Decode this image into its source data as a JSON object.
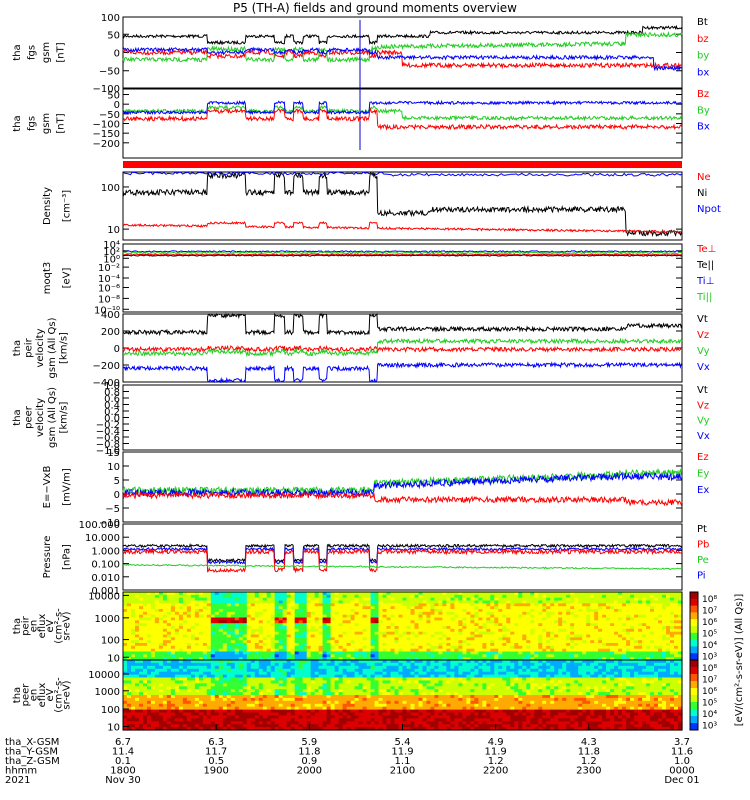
{
  "title": "P5 (TH-A) fields and ground moments overview",
  "panels": [
    {
      "id": "fgs1",
      "ylabel": [
        "tha",
        "fgs",
        "gsm",
        "[nT]"
      ],
      "ticks": [
        "100",
        "50",
        "0",
        "−50",
        "−100"
      ],
      "tick_y": [
        0.0,
        0.243,
        0.5,
        0.757,
        1.0
      ],
      "legend": [
        {
          "text": "Bt",
          "color": "#000000"
        },
        {
          "text": "bz",
          "color": "#ff0000"
        },
        {
          "text": "by",
          "color": "#22cc22"
        },
        {
          "text": "bx",
          "color": "#0000ff"
        }
      ]
    },
    {
      "id": "fgs2",
      "ylabel": [
        "tha",
        "fgs",
        "gsm",
        "[nT]"
      ],
      "ticks": [
        "50",
        "0",
        "−50",
        "−100",
        "−150",
        "−200"
      ],
      "tick_y": [
        0.08,
        0.22,
        0.36,
        0.5,
        0.64,
        0.78
      ],
      "legend": [
        {
          "text": "Bz",
          "color": "#ff0000"
        },
        {
          "text": "By",
          "color": "#22cc22"
        },
        {
          "text": "Bx",
          "color": "#0000ff"
        }
      ]
    },
    {
      "id": "density",
      "ylabel": [
        "Density",
        "[cm⁻³]"
      ],
      "ticks": [
        "100",
        "10"
      ],
      "tick_y": [
        0.22,
        0.84
      ],
      "legend": [
        {
          "text": "Ne",
          "color": "#ff0000"
        },
        {
          "text": "Ni",
          "color": "#000000"
        },
        {
          "text": "Npot",
          "color": "#0000ff"
        }
      ]
    },
    {
      "id": "temp",
      "ylabel": [
        "moqt3",
        "[eV]"
      ],
      "ticks": [
        "10⁴",
        "10²",
        "10⁰",
        "10⁻²",
        "10⁻⁴",
        "10⁻⁶",
        "10⁻⁸",
        "10⁻¹⁰"
      ],
      "tick_y": [
        0.0,
        0.1,
        0.21,
        0.34,
        0.5,
        0.64,
        0.8,
        0.96
      ],
      "legend": [
        {
          "text": "Te⊥",
          "color": "#ff0000"
        },
        {
          "text": "Te||",
          "color": "#000000"
        },
        {
          "text": "Ti⊥",
          "color": "#0000ff"
        },
        {
          "text": "Ti||",
          "color": "#22cc22"
        }
      ]
    },
    {
      "id": "peir_v",
      "ylabel": [
        "tha",
        "peir",
        "velocity",
        "gsm (All Qs)",
        "[km/s]"
      ],
      "ticks": [
        "400",
        "200",
        "0",
        "−200",
        "−400"
      ],
      "tick_y": [
        0.0,
        0.25,
        0.5,
        0.75,
        1.0
      ],
      "legend": [
        {
          "text": "Vt",
          "color": "#000000"
        },
        {
          "text": "Vz",
          "color": "#ff0000"
        },
        {
          "text": "Vy",
          "color": "#22cc22"
        },
        {
          "text": "Vx",
          "color": "#0000ff"
        }
      ]
    },
    {
      "id": "peer_v",
      "ylabel": [
        "tha",
        "peer",
        "velocity",
        "gsm (All Qs)",
        "[km/s]"
      ],
      "ticks": [
        "1.0",
        "0.8",
        "0.6",
        "0.4",
        "0.2",
        "0.0",
        "−0.2",
        "−0.4",
        "−0.6",
        "−0.8",
        "−1.0"
      ],
      "tick_y": [
        0,
        0.1,
        0.2,
        0.3,
        0.4,
        0.5,
        0.6,
        0.7,
        0.8,
        0.9,
        1.0
      ],
      "legend": [
        {
          "text": "Vt",
          "color": "#000000"
        },
        {
          "text": "Vz",
          "color": "#ff0000"
        },
        {
          "text": "Vy",
          "color": "#22cc22"
        },
        {
          "text": "Vx",
          "color": "#0000ff"
        }
      ]
    },
    {
      "id": "efield",
      "ylabel": [
        "E=−VxB",
        "[mV/m]"
      ],
      "ticks": [
        "15",
        "10",
        "5",
        "0",
        "−5",
        "−10"
      ],
      "tick_y": [
        0.0,
        0.2,
        0.4,
        0.6,
        0.8,
        1.0
      ],
      "legend": [
        {
          "text": "Ez",
          "color": "#ff0000"
        },
        {
          "text": "Ey",
          "color": "#22cc22"
        },
        {
          "text": "Ex",
          "color": "#0000ff"
        }
      ]
    },
    {
      "id": "pressure",
      "ylabel": [
        "Pressure",
        "[nPa]"
      ],
      "ticks": [
        "100.000",
        "10.000",
        "1.000",
        "0.100",
        "0.010",
        "0.001"
      ],
      "tick_y": [
        0.0,
        0.2,
        0.4,
        0.6,
        0.8,
        1.0
      ],
      "legend": [
        {
          "text": "Pt",
          "color": "#000000"
        },
        {
          "text": "Pb",
          "color": "#ff0000"
        },
        {
          "text": "Pe",
          "color": "#22cc22"
        },
        {
          "text": "Pi",
          "color": "#0000ff"
        }
      ]
    },
    {
      "id": "peir_spec",
      "ylabel": [
        "tha",
        "peir",
        "en",
        "eflux",
        "eV",
        "(cm²-s-",
        "sr-eV)"
      ],
      "ticks": [
        "10000",
        "1000",
        "100",
        "10"
      ],
      "tick_y": [
        0.05,
        0.38,
        0.7,
        0.96
      ]
    },
    {
      "id": "peer_spec",
      "ylabel": [
        "tha",
        "peer",
        "en",
        "eflux",
        "eV",
        "(cm²-s-",
        "sr-eV)"
      ],
      "ticks": [
        "10000",
        "1000",
        "100",
        "10"
      ],
      "tick_y": [
        0.2,
        0.44,
        0.7,
        0.95
      ]
    }
  ],
  "colorbar": {
    "label": "[eV/(cm²-s-sr-eV)] (All Qs)]",
    "ticks": [
      "10⁸",
      "10⁷",
      "10⁶",
      "10⁵",
      "10⁴",
      "10³",
      "10⁸",
      "10⁷",
      "10⁶",
      "10⁵",
      "10⁴",
      "10³"
    ]
  },
  "xaxis": {
    "row_labels": [
      "tha_X-GSM",
      "tha_Y-GSM",
      "tha_Z-GSM",
      "hhmm",
      "2021"
    ],
    "columns": [
      {
        "x": [
          "6.7",
          "11.4",
          "0.1",
          "1800",
          "Nov 30"
        ]
      },
      {
        "x": [
          "6.3",
          "11.7",
          "0.5",
          "1900",
          ""
        ]
      },
      {
        "x": [
          "5.9",
          "11.8",
          "0.9",
          "2000",
          ""
        ]
      },
      {
        "x": [
          "5.4",
          "11.9",
          "1.1",
          "2100",
          ""
        ]
      },
      {
        "x": [
          "4.9",
          "11.9",
          "1.2",
          "2200",
          ""
        ]
      },
      {
        "x": [
          "4.3",
          "11.8",
          "1.2",
          "2300",
          ""
        ]
      },
      {
        "x": [
          "3.7",
          "11.6",
          "1.0",
          "0000",
          "Dec 01"
        ]
      }
    ]
  },
  "chart_data": {
    "type": "line",
    "title": "P5 (TH-A) fields and ground moments overview",
    "x": [
      "1800",
      "1900",
      "2000",
      "2100",
      "2200",
      "2300",
      "0000"
    ],
    "series": [
      {
        "name": "Bt",
        "panel": "fgs1",
        "values": [
          40,
          38,
          40,
          42,
          42,
          40,
          55
        ]
      },
      {
        "name": "bz",
        "panel": "fgs1",
        "values": [
          5,
          -8,
          -10,
          -30,
          -25,
          -30,
          -20
        ]
      },
      {
        "name": "by",
        "panel": "fgs1",
        "values": [
          -10,
          -15,
          -5,
          15,
          25,
          30,
          45
        ]
      },
      {
        "name": "bx",
        "panel": "fgs1",
        "values": [
          10,
          -5,
          -5,
          -15,
          -10,
          -10,
          -40
        ]
      },
      {
        "name": "Ni",
        "panel": "density",
        "values": [
          50,
          150,
          100,
          50,
          25,
          30,
          12
        ]
      },
      {
        "name": "Ne",
        "panel": "density",
        "values": [
          15,
          13,
          14,
          12,
          11,
          11,
          9
        ]
      },
      {
        "name": "Vt",
        "panel": "peir_v",
        "values": [
          150,
          300,
          300,
          220,
          240,
          280,
          300
        ]
      },
      {
        "name": "Vz",
        "panel": "peir_v",
        "values": [
          0,
          20,
          0,
          20,
          40,
          20,
          -50
        ]
      },
      {
        "name": "Vy",
        "panel": "peir_v",
        "values": [
          80,
          60,
          80,
          110,
          130,
          160,
          200
        ]
      },
      {
        "name": "Vx",
        "panel": "peir_v",
        "values": [
          -150,
          -300,
          -300,
          -170,
          -170,
          -160,
          -100
        ]
      },
      {
        "name": "Ez",
        "panel": "efield",
        "values": [
          0,
          -2,
          -1,
          -2,
          -2,
          -3,
          -5
        ]
      },
      {
        "name": "Ey",
        "panel": "efield",
        "values": [
          0,
          2,
          1,
          2,
          4,
          8,
          10
        ]
      },
      {
        "name": "Ex",
        "panel": "efield",
        "values": [
          0,
          1,
          1,
          2,
          4,
          7,
          6
        ]
      },
      {
        "name": "Pt",
        "panel": "pressure",
        "values": [
          1.5,
          2,
          2,
          1.5,
          1.5,
          1.5,
          2
        ]
      },
      {
        "name": "Pi",
        "panel": "pressure",
        "values": [
          1,
          1.2,
          1.2,
          1,
          1,
          1,
          1
        ]
      },
      {
        "name": "Pb",
        "panel": "pressure",
        "values": [
          0.5,
          0.3,
          0.5,
          0.5,
          0.6,
          0.8,
          1
        ]
      },
      {
        "name": "Pe",
        "panel": "pressure",
        "values": [
          0.07,
          0.06,
          0.05,
          0.03,
          0.03,
          0.03,
          0.02
        ]
      }
    ]
  }
}
